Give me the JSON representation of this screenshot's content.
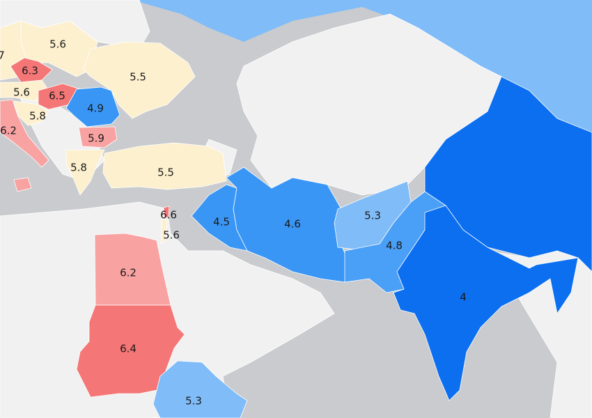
{
  "colors": {
    "water": "#c9cbce",
    "no_data_land": "#f1f1f1",
    "value_4_0": "#0b6ff0",
    "value_4_5": "#3a96f5",
    "value_5_3": "#80bcf8",
    "value_5_5": "#fdf0cf",
    "value_5_9": "#f9a2a2",
    "value_6_5": "#f47676"
  },
  "regions": [
    {
      "id": "cut-left",
      "value": "7",
      "color": "#fdf0cf"
    },
    {
      "id": "poland",
      "value": "5.6",
      "color": "#fdf0cf"
    },
    {
      "id": "czechia",
      "value": "6.3",
      "color": "#f47676"
    },
    {
      "id": "ukraine",
      "value": "5.5",
      "color": "#fdf0cf"
    },
    {
      "id": "austria",
      "value": "5.6",
      "color": "#fdf0cf"
    },
    {
      "id": "hungary",
      "value": "6.5",
      "color": "#f47676"
    },
    {
      "id": "romania",
      "value": "4.9",
      "color": "#3a96f5"
    },
    {
      "id": "croatia",
      "value": "5.8",
      "color": "#fdf0cf"
    },
    {
      "id": "italy",
      "value": "6.2",
      "color": "#f9a2a2"
    },
    {
      "id": "bulgaria",
      "value": "5.9",
      "color": "#f9a2a2"
    },
    {
      "id": "greece",
      "value": "5.8",
      "color": "#fdf0cf"
    },
    {
      "id": "turkey",
      "value": "5.5",
      "color": "#fdf0cf"
    },
    {
      "id": "lebanon",
      "value": "6.6",
      "color": "#f47676"
    },
    {
      "id": "israel",
      "value": "5.6",
      "color": "#fdf0cf"
    },
    {
      "id": "iraq",
      "value": "4.5",
      "color": "#3a96f5"
    },
    {
      "id": "iran",
      "value": "4.6",
      "color": "#3a96f5"
    },
    {
      "id": "afghanistan",
      "value": "5.3",
      "color": "#80bcf8"
    },
    {
      "id": "pakistan",
      "value": "4.8",
      "color": "#4a9ff6"
    },
    {
      "id": "india",
      "value": "4",
      "color": "#0b6ff0"
    },
    {
      "id": "egypt",
      "value": "6.2",
      "color": "#f9a2a2"
    },
    {
      "id": "sudan",
      "value": "6.4",
      "color": "#f47676"
    },
    {
      "id": "ethiopia",
      "value": "5.3",
      "color": "#80bcf8"
    }
  ]
}
